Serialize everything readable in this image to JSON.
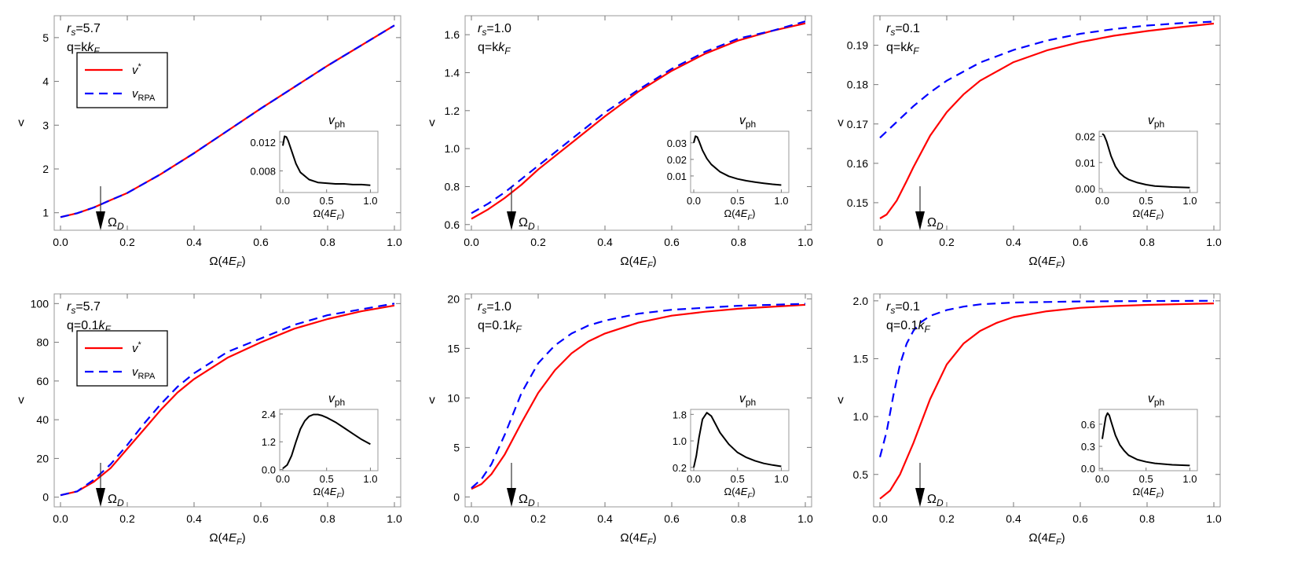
{
  "chart_data": [
    {
      "type": "line",
      "ylabel": "v",
      "xlabel": "Ω(4E_F)",
      "xlim": [
        0,
        1.0
      ],
      "ylim": [
        0.6,
        5.5
      ],
      "xticks": [
        0.0,
        0.2,
        0.4,
        0.6,
        0.8,
        1.0
      ],
      "xtick_labels": [
        "0.0",
        "0.2",
        "0.4",
        "0.6",
        "0.8",
        "1.0"
      ],
      "yticks": [
        1,
        2,
        3,
        4,
        5
      ],
      "ytick_labels": [
        "1",
        "2",
        "3",
        "4",
        "5"
      ],
      "annotation": {
        "rs": "5.7",
        "q": "k"
      },
      "legend": {
        "position": "upper-left",
        "entries": [
          {
            "label": "v*",
            "color": "#ff0000",
            "dash": "solid"
          },
          {
            "label": "v_RPA",
            "color": "#0000ff",
            "dash": "dashed"
          }
        ]
      },
      "arrow": {
        "x": 0.12,
        "label": "Ω_D"
      },
      "series": [
        {
          "color": "#ff0000",
          "dash": "solid",
          "x": [
            0,
            0.05,
            0.1,
            0.15,
            0.2,
            0.3,
            0.4,
            0.5,
            0.6,
            0.7,
            0.8,
            0.9,
            1.0
          ],
          "y": [
            0.9,
            0.99,
            1.12,
            1.29,
            1.45,
            1.88,
            2.36,
            2.87,
            3.38,
            3.87,
            4.36,
            4.82,
            5.28
          ]
        },
        {
          "color": "#0000ff",
          "dash": "dashed",
          "x": [
            0,
            0.05,
            0.1,
            0.15,
            0.2,
            0.3,
            0.4,
            0.5,
            0.6,
            0.7,
            0.8,
            0.9,
            1.0
          ],
          "y": [
            0.9,
            0.99,
            1.12,
            1.29,
            1.45,
            1.88,
            2.36,
            2.87,
            3.38,
            3.87,
            4.36,
            4.82,
            5.28
          ]
        }
      ],
      "inset": {
        "title": "v_ph",
        "xlabel": "Ω(4E_F)",
        "xlim": [
          0,
          1.05
        ],
        "ylim": [
          0.005,
          0.0135
        ],
        "xticks": [
          0.0,
          0.5,
          1.0
        ],
        "xtick_labels": [
          "0.0",
          "0.5",
          "1.0"
        ],
        "yticks": [
          0.008,
          0.012
        ],
        "ytick_labels": [
          "0.008",
          "0.012"
        ],
        "x": [
          0,
          0.02,
          0.04,
          0.06,
          0.1,
          0.15,
          0.2,
          0.3,
          0.4,
          0.5,
          0.6,
          0.7,
          0.8,
          0.9,
          1.0
        ],
        "y": [
          0.0115,
          0.0128,
          0.0127,
          0.0122,
          0.0108,
          0.009,
          0.0078,
          0.0068,
          0.0064,
          0.0063,
          0.0062,
          0.0062,
          0.0061,
          0.0061,
          0.006
        ]
      }
    },
    {
      "type": "line",
      "ylabel": "v",
      "xlabel": "Ω(4E_F)",
      "xlim": [
        0,
        1.0
      ],
      "ylim": [
        0.57,
        1.7
      ],
      "xticks": [
        0.0,
        0.2,
        0.4,
        0.6,
        0.8,
        1.0
      ],
      "xtick_labels": [
        "0.0",
        "0.2",
        "0.4",
        "0.6",
        "0.8",
        "1.0"
      ],
      "yticks": [
        0.6,
        0.8,
        1.0,
        1.2,
        1.4,
        1.6
      ],
      "ytick_labels": [
        "0.6",
        "0.8",
        "1.0",
        "1.2",
        "1.4",
        "1.6"
      ],
      "annotation": {
        "rs": "1.0",
        "q": "k"
      },
      "arrow": {
        "x": 0.12,
        "label": "Ω_D"
      },
      "series": [
        {
          "color": "#ff0000",
          "dash": "solid",
          "x": [
            0,
            0.05,
            0.1,
            0.15,
            0.2,
            0.3,
            0.4,
            0.5,
            0.6,
            0.7,
            0.8,
            0.9,
            1.0
          ],
          "y": [
            0.63,
            0.68,
            0.74,
            0.81,
            0.89,
            1.03,
            1.17,
            1.3,
            1.41,
            1.5,
            1.57,
            1.62,
            1.66
          ]
        },
        {
          "color": "#0000ff",
          "dash": "dashed",
          "x": [
            0,
            0.05,
            0.1,
            0.15,
            0.2,
            0.3,
            0.4,
            0.5,
            0.6,
            0.7,
            0.8,
            0.9,
            1.0
          ],
          "y": [
            0.66,
            0.71,
            0.77,
            0.84,
            0.91,
            1.05,
            1.19,
            1.31,
            1.42,
            1.51,
            1.58,
            1.62,
            1.67
          ]
        }
      ],
      "inset": {
        "title": "v_ph",
        "xlabel": "Ω(4E_F)",
        "xlim": [
          0,
          1.05
        ],
        "ylim": [
          0.0,
          0.037
        ],
        "xticks": [
          0.0,
          0.5,
          1.0
        ],
        "xtick_labels": [
          "0.0",
          "0.5",
          "1.0"
        ],
        "yticks": [
          0.01,
          0.02,
          0.03
        ],
        "ytick_labels": [
          "0.01",
          "0.02",
          "0.03"
        ],
        "x": [
          0,
          0.02,
          0.04,
          0.06,
          0.1,
          0.15,
          0.2,
          0.3,
          0.4,
          0.5,
          0.6,
          0.7,
          0.8,
          0.9,
          1.0
        ],
        "y": [
          0.03,
          0.034,
          0.0335,
          0.031,
          0.0255,
          0.0205,
          0.017,
          0.0125,
          0.0098,
          0.0082,
          0.0071,
          0.0063,
          0.0056,
          0.005,
          0.0045
        ]
      }
    },
    {
      "type": "line",
      "ylabel": "v",
      "xlabel": "Ω(4E_F)",
      "xlim": [
        0,
        1.0
      ],
      "ylim": [
        0.143,
        0.1975
      ],
      "xticks": [
        0.0,
        0.2,
        0.4,
        0.6,
        0.8,
        1.0
      ],
      "xtick_labels": [
        "0",
        "0.2",
        "0.4",
        "0.6",
        "0.8",
        "1.0"
      ],
      "yticks": [
        0.15,
        0.16,
        0.17,
        0.18,
        0.19
      ],
      "ytick_labels": [
        "0.15",
        "0.16",
        "0.17",
        "0.18",
        "0.19"
      ],
      "annotation": {
        "rs": "0.1",
        "q": "k"
      },
      "arrow": {
        "x": 0.12,
        "label": "Ω_D"
      },
      "series": [
        {
          "color": "#ff0000",
          "dash": "solid",
          "x": [
            0,
            0.02,
            0.05,
            0.08,
            0.1,
            0.15,
            0.2,
            0.25,
            0.3,
            0.4,
            0.5,
            0.6,
            0.7,
            0.8,
            0.9,
            1.0
          ],
          "y": [
            0.146,
            0.147,
            0.1505,
            0.1555,
            0.159,
            0.167,
            0.173,
            0.1775,
            0.181,
            0.1857,
            0.1887,
            0.1908,
            0.1924,
            0.1936,
            0.1946,
            0.1955
          ]
        },
        {
          "color": "#0000ff",
          "dash": "dashed",
          "x": [
            0,
            0.05,
            0.1,
            0.15,
            0.2,
            0.3,
            0.4,
            0.5,
            0.6,
            0.7,
            0.8,
            0.9,
            1.0
          ],
          "y": [
            0.1665,
            0.1705,
            0.1745,
            0.178,
            0.181,
            0.1856,
            0.1888,
            0.1912,
            0.1929,
            0.1941,
            0.195,
            0.1956,
            0.196
          ]
        }
      ],
      "inset": {
        "title": "v_ph",
        "xlabel": "Ω(4E_F)",
        "xlim": [
          0,
          1.05
        ],
        "ylim": [
          -0.0015,
          0.022
        ],
        "xticks": [
          0.0,
          0.5,
          1.0
        ],
        "xtick_labels": [
          "0.0",
          "0.5",
          "1.0"
        ],
        "yticks": [
          0.0,
          0.01,
          0.02
        ],
        "ytick_labels": [
          "0.00",
          "0.01",
          "0.02"
        ],
        "x": [
          0,
          0.02,
          0.05,
          0.1,
          0.15,
          0.2,
          0.25,
          0.3,
          0.4,
          0.5,
          0.6,
          0.8,
          1.0
        ],
        "y": [
          0.021,
          0.0205,
          0.018,
          0.0125,
          0.0085,
          0.006,
          0.0045,
          0.0035,
          0.0023,
          0.0015,
          0.001,
          0.0006,
          0.0004
        ]
      }
    },
    {
      "type": "line",
      "ylabel": "v",
      "xlabel": "Ω(4E_F)",
      "xlim": [
        0,
        1.0
      ],
      "ylim": [
        -5,
        105
      ],
      "xticks": [
        0.0,
        0.2,
        0.4,
        0.6,
        0.8,
        1.0
      ],
      "xtick_labels": [
        "0.0",
        "0.2",
        "0.4",
        "0.6",
        "0.8",
        "1.0"
      ],
      "yticks": [
        0,
        20,
        40,
        60,
        80,
        100
      ],
      "ytick_labels": [
        "0",
        "20",
        "40",
        "60",
        "80",
        "100"
      ],
      "annotation": {
        "rs": "5.7",
        "q": "0.1k"
      },
      "legend": {
        "position": "upper-left",
        "entries": [
          {
            "label": "v*",
            "color": "#ff0000",
            "dash": "solid"
          },
          {
            "label": "v_RPA",
            "color": "#0000ff",
            "dash": "dashed"
          }
        ]
      },
      "arrow": {
        "x": 0.12,
        "label": "Ω_D"
      },
      "series": [
        {
          "color": "#ff0000",
          "dash": "solid",
          "x": [
            0,
            0.05,
            0.1,
            0.15,
            0.2,
            0.25,
            0.3,
            0.35,
            0.4,
            0.5,
            0.6,
            0.7,
            0.8,
            0.9,
            1.0
          ],
          "y": [
            1,
            3,
            8,
            15,
            25,
            35,
            45,
            54,
            61,
            72,
            80,
            87,
            92,
            96,
            99
          ]
        },
        {
          "color": "#0000ff",
          "dash": "dashed",
          "x": [
            0,
            0.05,
            0.1,
            0.15,
            0.2,
            0.25,
            0.3,
            0.35,
            0.4,
            0.5,
            0.6,
            0.7,
            0.8,
            0.9,
            1.0
          ],
          "y": [
            1,
            3,
            9,
            17,
            27,
            38,
            48,
            57,
            64,
            75,
            82,
            89,
            94,
            97,
            100
          ]
        }
      ],
      "inset": {
        "title": "v_ph",
        "xlabel": "Ω(4E_F)",
        "xlim": [
          0,
          1.05
        ],
        "ylim": [
          -0.05,
          2.6
        ],
        "xticks": [
          0.0,
          0.5,
          1.0
        ],
        "xtick_labels": [
          "0.0",
          "0.5",
          "1.0"
        ],
        "yticks": [
          0.0,
          1.2,
          2.4
        ],
        "ytick_labels": [
          "0.0",
          "1.2",
          "2.4"
        ],
        "x": [
          0,
          0.05,
          0.1,
          0.15,
          0.2,
          0.25,
          0.3,
          0.35,
          0.4,
          0.45,
          0.5,
          0.6,
          0.7,
          0.8,
          0.9,
          1.0
        ],
        "y": [
          0.05,
          0.2,
          0.6,
          1.2,
          1.75,
          2.1,
          2.3,
          2.38,
          2.38,
          2.33,
          2.25,
          2.05,
          1.8,
          1.55,
          1.3,
          1.1
        ]
      }
    },
    {
      "type": "line",
      "ylabel": "v",
      "xlabel": "Ω(4E_F)",
      "xlim": [
        0,
        1.0
      ],
      "ylim": [
        -1,
        20.5
      ],
      "xticks": [
        0.0,
        0.2,
        0.4,
        0.6,
        0.8,
        1.0
      ],
      "xtick_labels": [
        "0.0",
        "0.2",
        "0.4",
        "0.6",
        "0.8",
        "1.0"
      ],
      "yticks": [
        0,
        5,
        10,
        15,
        20
      ],
      "ytick_labels": [
        "0",
        "5",
        "10",
        "15",
        "20"
      ],
      "annotation": {
        "rs": "1.0",
        "q": "0.1k"
      },
      "arrow": {
        "x": 0.12,
        "label": "Ω_D"
      },
      "series": [
        {
          "color": "#ff0000",
          "dash": "solid",
          "x": [
            0,
            0.03,
            0.06,
            0.1,
            0.15,
            0.2,
            0.25,
            0.3,
            0.35,
            0.4,
            0.5,
            0.6,
            0.7,
            0.8,
            0.9,
            1.0
          ],
          "y": [
            0.8,
            1.3,
            2.3,
            4.3,
            7.5,
            10.5,
            12.8,
            14.5,
            15.7,
            16.5,
            17.6,
            18.3,
            18.7,
            19.0,
            19.2,
            19.4
          ]
        },
        {
          "color": "#0000ff",
          "dash": "dashed",
          "x": [
            0,
            0.03,
            0.06,
            0.1,
            0.15,
            0.2,
            0.25,
            0.3,
            0.35,
            0.4,
            0.5,
            0.6,
            0.7,
            0.8,
            0.9,
            1.0
          ],
          "y": [
            0.9,
            1.8,
            3.3,
            6.3,
            10.5,
            13.5,
            15.3,
            16.5,
            17.3,
            17.8,
            18.5,
            18.9,
            19.1,
            19.3,
            19.4,
            19.5
          ]
        }
      ],
      "inset": {
        "title": "v_ph",
        "xlabel": "Ω(4E_F)",
        "xlim": [
          0,
          1.05
        ],
        "ylim": [
          0.1,
          1.95
        ],
        "xticks": [
          0.0,
          0.5,
          1.0
        ],
        "xtick_labels": [
          "0.0",
          "0.5",
          "1.0"
        ],
        "yticks": [
          0.2,
          1.0,
          1.8
        ],
        "ytick_labels": [
          "0.2",
          "1.0",
          "1.8"
        ],
        "x": [
          0,
          0.03,
          0.06,
          0.1,
          0.15,
          0.2,
          0.25,
          0.3,
          0.4,
          0.5,
          0.6,
          0.7,
          0.8,
          0.9,
          1.0
        ],
        "y": [
          0.2,
          0.55,
          1.1,
          1.65,
          1.85,
          1.75,
          1.5,
          1.25,
          0.9,
          0.65,
          0.5,
          0.4,
          0.32,
          0.27,
          0.23
        ]
      }
    },
    {
      "type": "line",
      "ylabel": "v",
      "xlabel": "Ω(4E_F)",
      "xlim": [
        0,
        1.0
      ],
      "ylim": [
        0.22,
        2.06
      ],
      "xticks": [
        0.0,
        0.2,
        0.4,
        0.6,
        0.8,
        1.0
      ],
      "xtick_labels": [
        "0.0",
        "0.2",
        "0.4",
        "0.6",
        "0.8",
        "1.0"
      ],
      "yticks": [
        0.5,
        1.0,
        1.5,
        2.0
      ],
      "ytick_labels": [
        "0.5",
        "1.0",
        "1.5",
        "2.0"
      ],
      "annotation": {
        "rs": "0.1",
        "q": "0.1k"
      },
      "arrow": {
        "x": 0.12,
        "label": "Ω_D"
      },
      "series": [
        {
          "color": "#ff0000",
          "dash": "solid",
          "x": [
            0,
            0.03,
            0.06,
            0.1,
            0.15,
            0.2,
            0.25,
            0.3,
            0.35,
            0.4,
            0.5,
            0.6,
            0.7,
            0.8,
            0.9,
            1.0
          ],
          "y": [
            0.29,
            0.36,
            0.5,
            0.77,
            1.15,
            1.45,
            1.63,
            1.74,
            1.81,
            1.86,
            1.91,
            1.94,
            1.955,
            1.965,
            1.972,
            1.978
          ]
        },
        {
          "color": "#0000ff",
          "dash": "dashed",
          "x": [
            0,
            0.02,
            0.04,
            0.06,
            0.08,
            0.1,
            0.12,
            0.15,
            0.2,
            0.25,
            0.3,
            0.4,
            0.5,
            0.6,
            0.8,
            1.0
          ],
          "y": [
            0.65,
            0.87,
            1.18,
            1.45,
            1.63,
            1.74,
            1.81,
            1.87,
            1.92,
            1.95,
            1.97,
            1.985,
            1.99,
            1.995,
            1.998,
            2.0
          ]
        }
      ],
      "inset": {
        "title": "v_ph",
        "xlabel": "Ω(4E_F)",
        "xlim": [
          0,
          1.05
        ],
        "ylim": [
          -0.03,
          0.8
        ],
        "xticks": [
          0.0,
          0.5,
          1.0
        ],
        "xtick_labels": [
          "0.0",
          "0.5",
          "1.0"
        ],
        "yticks": [
          0.0,
          0.3,
          0.6
        ],
        "ytick_labels": [
          "0.0",
          "0.3",
          "0.6"
        ],
        "x": [
          0,
          0.02,
          0.04,
          0.06,
          0.08,
          0.1,
          0.15,
          0.2,
          0.25,
          0.3,
          0.4,
          0.5,
          0.6,
          0.8,
          1.0
        ],
        "y": [
          0.4,
          0.55,
          0.7,
          0.75,
          0.72,
          0.64,
          0.45,
          0.32,
          0.24,
          0.18,
          0.12,
          0.09,
          0.07,
          0.05,
          0.04
        ]
      }
    }
  ]
}
